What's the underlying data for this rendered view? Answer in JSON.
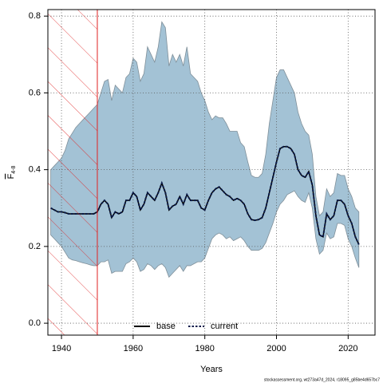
{
  "chart_data": {
    "type": "line",
    "ylabel": "F",
    "ylabel_sub": "4-8",
    "xlabel": "Years",
    "footer": "stockassessment.org, wt273a47d_2024, r18095_g85be4d657bc7",
    "x": [
      1937,
      1938,
      1939,
      1940,
      1941,
      1942,
      1943,
      1944,
      1945,
      1946,
      1947,
      1948,
      1949,
      1950,
      1951,
      1952,
      1953,
      1954,
      1955,
      1956,
      1957,
      1958,
      1959,
      1960,
      1961,
      1962,
      1963,
      1964,
      1965,
      1966,
      1967,
      1968,
      1969,
      1970,
      1971,
      1972,
      1973,
      1974,
      1975,
      1976,
      1977,
      1978,
      1979,
      1980,
      1981,
      1982,
      1983,
      1984,
      1985,
      1986,
      1987,
      1988,
      1989,
      1990,
      1991,
      1992,
      1993,
      1994,
      1995,
      1996,
      1997,
      1998,
      1999,
      2000,
      2001,
      2002,
      2003,
      2004,
      2005,
      2006,
      2007,
      2008,
      2009,
      2010,
      2011,
      2012,
      2013,
      2014,
      2015,
      2016,
      2017,
      2018,
      2019,
      2020,
      2021,
      2022,
      2023
    ],
    "band": {
      "color": "#a3c2d5",
      "upper": [
        0.4,
        0.41,
        0.42,
        0.43,
        0.45,
        0.48,
        0.495,
        0.51,
        0.52,
        0.53,
        0.54,
        0.55,
        0.56,
        0.57,
        0.6,
        0.63,
        0.635,
        0.58,
        0.62,
        0.61,
        0.6,
        0.64,
        0.65,
        0.69,
        0.68,
        0.63,
        0.65,
        0.72,
        0.7,
        0.68,
        0.72,
        0.785,
        0.77,
        0.67,
        0.7,
        0.68,
        0.7,
        0.67,
        0.72,
        0.65,
        0.64,
        0.63,
        0.6,
        0.58,
        0.55,
        0.53,
        0.54,
        0.535,
        0.535,
        0.52,
        0.5,
        0.5,
        0.5,
        0.47,
        0.46,
        0.42,
        0.385,
        0.38,
        0.38,
        0.39,
        0.44,
        0.52,
        0.58,
        0.64,
        0.66,
        0.66,
        0.64,
        0.62,
        0.6,
        0.55,
        0.52,
        0.5,
        0.49,
        0.44,
        0.33,
        0.28,
        0.29,
        0.35,
        0.33,
        0.34,
        0.39,
        0.385,
        0.385,
        0.35,
        0.33,
        0.3,
        0.29
      ],
      "lower": [
        0.23,
        0.22,
        0.21,
        0.2,
        0.185,
        0.17,
        0.165,
        0.163,
        0.16,
        0.157,
        0.155,
        0.152,
        0.15,
        0.15,
        0.16,
        0.16,
        0.165,
        0.13,
        0.135,
        0.135,
        0.135,
        0.155,
        0.16,
        0.17,
        0.16,
        0.135,
        0.14,
        0.155,
        0.15,
        0.14,
        0.15,
        0.155,
        0.145,
        0.12,
        0.13,
        0.14,
        0.15,
        0.135,
        0.15,
        0.15,
        0.155,
        0.16,
        0.16,
        0.17,
        0.195,
        0.22,
        0.23,
        0.235,
        0.23,
        0.22,
        0.225,
        0.215,
        0.22,
        0.225,
        0.215,
        0.2,
        0.19,
        0.19,
        0.19,
        0.195,
        0.21,
        0.235,
        0.26,
        0.29,
        0.31,
        0.32,
        0.335,
        0.34,
        0.345,
        0.33,
        0.32,
        0.315,
        0.34,
        0.3,
        0.22,
        0.18,
        0.19,
        0.235,
        0.22,
        0.225,
        0.26,
        0.26,
        0.255,
        0.22,
        0.2,
        0.17,
        0.145
      ]
    },
    "series": [
      {
        "name": "base",
        "color": "#000000",
        "dash": false,
        "values": [
          0.3,
          0.295,
          0.29,
          0.29,
          0.288,
          0.285,
          0.285,
          0.285,
          0.285,
          0.285,
          0.285,
          0.285,
          0.285,
          0.29,
          0.31,
          0.32,
          0.31,
          0.275,
          0.29,
          0.285,
          0.29,
          0.32,
          0.32,
          0.34,
          0.33,
          0.295,
          0.31,
          0.34,
          0.33,
          0.32,
          0.34,
          0.365,
          0.34,
          0.295,
          0.305,
          0.31,
          0.33,
          0.31,
          0.335,
          0.32,
          0.32,
          0.32,
          0.3,
          0.295,
          0.32,
          0.34,
          0.35,
          0.355,
          0.345,
          0.335,
          0.33,
          0.32,
          0.325,
          0.32,
          0.31,
          0.285,
          0.27,
          0.268,
          0.27,
          0.275,
          0.3,
          0.34,
          0.38,
          0.42,
          0.455,
          0.46,
          0.46,
          0.455,
          0.44,
          0.4,
          0.385,
          0.38,
          0.395,
          0.36,
          0.28,
          0.23,
          0.225,
          0.285,
          0.27,
          0.28,
          0.32,
          0.32,
          0.31,
          0.28,
          0.26,
          0.225,
          0.205
        ]
      },
      {
        "name": "current",
        "color": "#0a1a4a",
        "dash": true,
        "values": [
          0.3,
          0.295,
          0.29,
          0.29,
          0.288,
          0.285,
          0.285,
          0.285,
          0.285,
          0.285,
          0.285,
          0.285,
          0.285,
          0.29,
          0.31,
          0.32,
          0.31,
          0.275,
          0.29,
          0.285,
          0.29,
          0.32,
          0.32,
          0.34,
          0.33,
          0.295,
          0.31,
          0.34,
          0.33,
          0.32,
          0.34,
          0.365,
          0.34,
          0.295,
          0.305,
          0.31,
          0.33,
          0.31,
          0.335,
          0.32,
          0.32,
          0.32,
          0.3,
          0.295,
          0.32,
          0.34,
          0.35,
          0.355,
          0.345,
          0.335,
          0.33,
          0.32,
          0.325,
          0.32,
          0.31,
          0.285,
          0.27,
          0.268,
          0.27,
          0.275,
          0.3,
          0.34,
          0.38,
          0.42,
          0.455,
          0.46,
          0.46,
          0.455,
          0.44,
          0.4,
          0.385,
          0.38,
          0.395,
          0.36,
          0.28,
          0.23,
          0.225,
          0.285,
          0.27,
          0.28,
          0.32,
          0.32,
          0.31,
          0.28,
          0.26,
          0.225,
          0.205
        ]
      }
    ],
    "highlight_x": [
      1936.2,
      1950
    ],
    "highlight_color": "#e02020",
    "xlim": [
      1936.2,
      2027.5
    ],
    "ylim": [
      -0.031,
      0.817
    ],
    "xticks": [
      1940,
      1960,
      1980,
      2000,
      2020
    ],
    "yticks": [
      {
        "value": 0,
        "label": "0.0"
      },
      0.2,
      0.4,
      0.6,
      0.8
    ],
    "grid": true,
    "legend": "bottom"
  }
}
